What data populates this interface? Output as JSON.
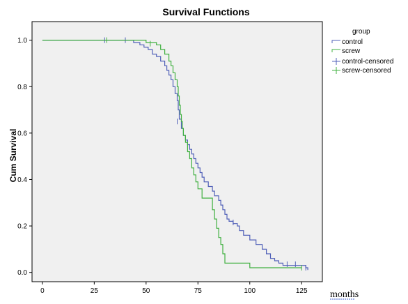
{
  "chart_data": {
    "type": "line",
    "title": "Survival Functions",
    "xlabel": "months",
    "ylabel": "Cum Survival",
    "xlim": [
      -5,
      135
    ],
    "ylim": [
      -0.04,
      1.08
    ],
    "xticks": [
      0,
      25,
      50,
      75,
      100,
      125
    ],
    "yticks": [
      0.0,
      0.2,
      0.4,
      0.6,
      0.8,
      1.0
    ],
    "ytick_labels": [
      "0.0",
      "0.2",
      "0.4",
      "0.6",
      "0.8",
      "1.0"
    ],
    "grid": false,
    "step": true,
    "legend": {
      "title": "group",
      "placement": "right",
      "entries": [
        "control",
        "screw",
        "control-censored",
        "screw-censored"
      ]
    },
    "series": [
      {
        "name": "control",
        "color": "#5060b8",
        "points": [
          [
            0,
            1.0
          ],
          [
            42,
            1.0
          ],
          [
            44,
            0.99
          ],
          [
            47,
            0.98
          ],
          [
            49,
            0.97
          ],
          [
            51,
            0.96
          ],
          [
            53,
            0.94
          ],
          [
            55,
            0.93
          ],
          [
            57,
            0.91
          ],
          [
            59,
            0.89
          ],
          [
            60,
            0.87
          ],
          [
            61,
            0.85
          ],
          [
            62,
            0.83
          ],
          [
            63,
            0.8
          ],
          [
            64,
            0.77
          ],
          [
            65,
            0.74
          ],
          [
            65.5,
            0.7
          ],
          [
            66,
            0.66
          ],
          [
            67,
            0.62
          ],
          [
            68,
            0.59
          ],
          [
            69,
            0.57
          ],
          [
            70,
            0.55
          ],
          [
            71,
            0.53
          ],
          [
            72,
            0.51
          ],
          [
            73,
            0.49
          ],
          [
            74,
            0.47
          ],
          [
            75,
            0.45
          ],
          [
            76,
            0.43
          ],
          [
            77,
            0.41
          ],
          [
            78,
            0.39
          ],
          [
            80,
            0.37
          ],
          [
            82,
            0.35
          ],
          [
            83,
            0.33
          ],
          [
            85,
            0.31
          ],
          [
            86,
            0.29
          ],
          [
            87,
            0.27
          ],
          [
            88,
            0.25
          ],
          [
            89,
            0.23
          ],
          [
            90,
            0.22
          ],
          [
            92,
            0.21
          ],
          [
            94,
            0.2
          ],
          [
            95,
            0.18
          ],
          [
            97,
            0.16
          ],
          [
            100,
            0.14
          ],
          [
            103,
            0.12
          ],
          [
            106,
            0.1
          ],
          [
            108,
            0.08
          ],
          [
            110,
            0.06
          ],
          [
            112,
            0.05
          ],
          [
            114,
            0.04
          ],
          [
            116,
            0.03
          ],
          [
            126,
            0.03
          ],
          [
            127,
            0.02
          ],
          [
            128,
            0.01
          ]
        ],
        "censored": [
          [
            30,
            1.0
          ],
          [
            40,
            1.0
          ],
          [
            65,
            0.65
          ],
          [
            92,
            0.215
          ],
          [
            118,
            0.035
          ],
          [
            122,
            0.035
          ],
          [
            127,
            0.02
          ]
        ]
      },
      {
        "name": "screw",
        "color": "#40b040",
        "points": [
          [
            0,
            1.0
          ],
          [
            48,
            1.0
          ],
          [
            50,
            0.99
          ],
          [
            55,
            0.98
          ],
          [
            57,
            0.96
          ],
          [
            59,
            0.94
          ],
          [
            61,
            0.91
          ],
          [
            62,
            0.89
          ],
          [
            63,
            0.86
          ],
          [
            64,
            0.83
          ],
          [
            65,
            0.8
          ],
          [
            65.5,
            0.76
          ],
          [
            66,
            0.72
          ],
          [
            66.5,
            0.68
          ],
          [
            67,
            0.65
          ],
          [
            67.5,
            0.62
          ],
          [
            68,
            0.59
          ],
          [
            69,
            0.56
          ],
          [
            70,
            0.52
          ],
          [
            71,
            0.49
          ],
          [
            72,
            0.45
          ],
          [
            73,
            0.42
          ],
          [
            74,
            0.39
          ],
          [
            75,
            0.36
          ],
          [
            77,
            0.32
          ],
          [
            82,
            0.27
          ],
          [
            83,
            0.23
          ],
          [
            84,
            0.19
          ],
          [
            85,
            0.15
          ],
          [
            86,
            0.12
          ],
          [
            87,
            0.08
          ],
          [
            88,
            0.04
          ],
          [
            100,
            0.02
          ],
          [
            125,
            0.02
          ]
        ],
        "censored": [
          [
            31,
            1.0
          ],
          [
            52,
            0.985
          ],
          [
            125,
            0.02
          ]
        ]
      }
    ]
  }
}
